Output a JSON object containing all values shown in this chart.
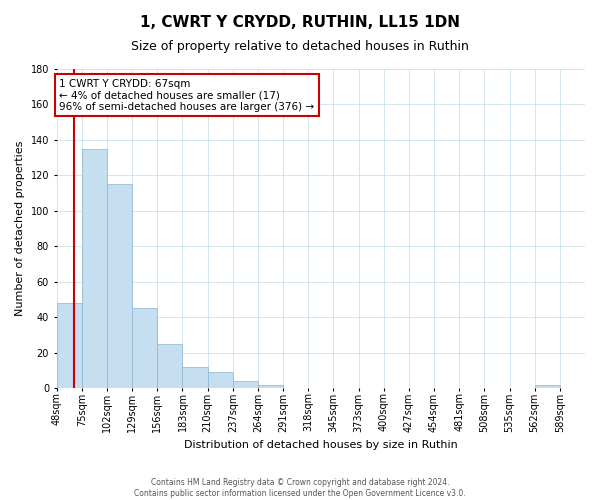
{
  "title": "1, CWRT Y CRYDD, RUTHIN, LL15 1DN",
  "subtitle": "Size of property relative to detached houses in Ruthin",
  "xlabel": "Distribution of detached houses by size in Ruthin",
  "ylabel": "Number of detached properties",
  "bar_labels": [
    "48sqm",
    "75sqm",
    "102sqm",
    "129sqm",
    "156sqm",
    "183sqm",
    "210sqm",
    "237sqm",
    "264sqm",
    "291sqm",
    "318sqm",
    "345sqm",
    "373sqm",
    "400sqm",
    "427sqm",
    "454sqm",
    "481sqm",
    "508sqm",
    "535sqm",
    "562sqm",
    "589sqm"
  ],
  "bar_values": [
    48,
    135,
    115,
    45,
    25,
    12,
    9,
    4,
    2,
    0,
    0,
    0,
    0,
    0,
    0,
    0,
    0,
    0,
    0,
    2,
    0
  ],
  "bar_color": "#c6dff0",
  "bar_edge_color": "#8ab4d4",
  "grid_color": "#cce0f0",
  "vline_color": "#cc0000",
  "annotation_title": "1 CWRT Y CRYDD: 67sqm",
  "annotation_line1": "← 4% of detached houses are smaller (17)",
  "annotation_line2": "96% of semi-detached houses are larger (376) →",
  "annotation_box_color": "#ffffff",
  "annotation_border_color": "#cc0000",
  "ylim": [
    0,
    180
  ],
  "yticks": [
    0,
    20,
    40,
    60,
    80,
    100,
    120,
    140,
    160,
    180
  ],
  "title_fontsize": 11,
  "subtitle_fontsize": 9,
  "xlabel_fontsize": 8,
  "ylabel_fontsize": 8,
  "tick_fontsize": 7,
  "annotation_fontsize": 7.5,
  "footer_line1": "Contains HM Land Registry data © Crown copyright and database right 2024.",
  "footer_line2": "Contains public sector information licensed under the Open Government Licence v3.0."
}
